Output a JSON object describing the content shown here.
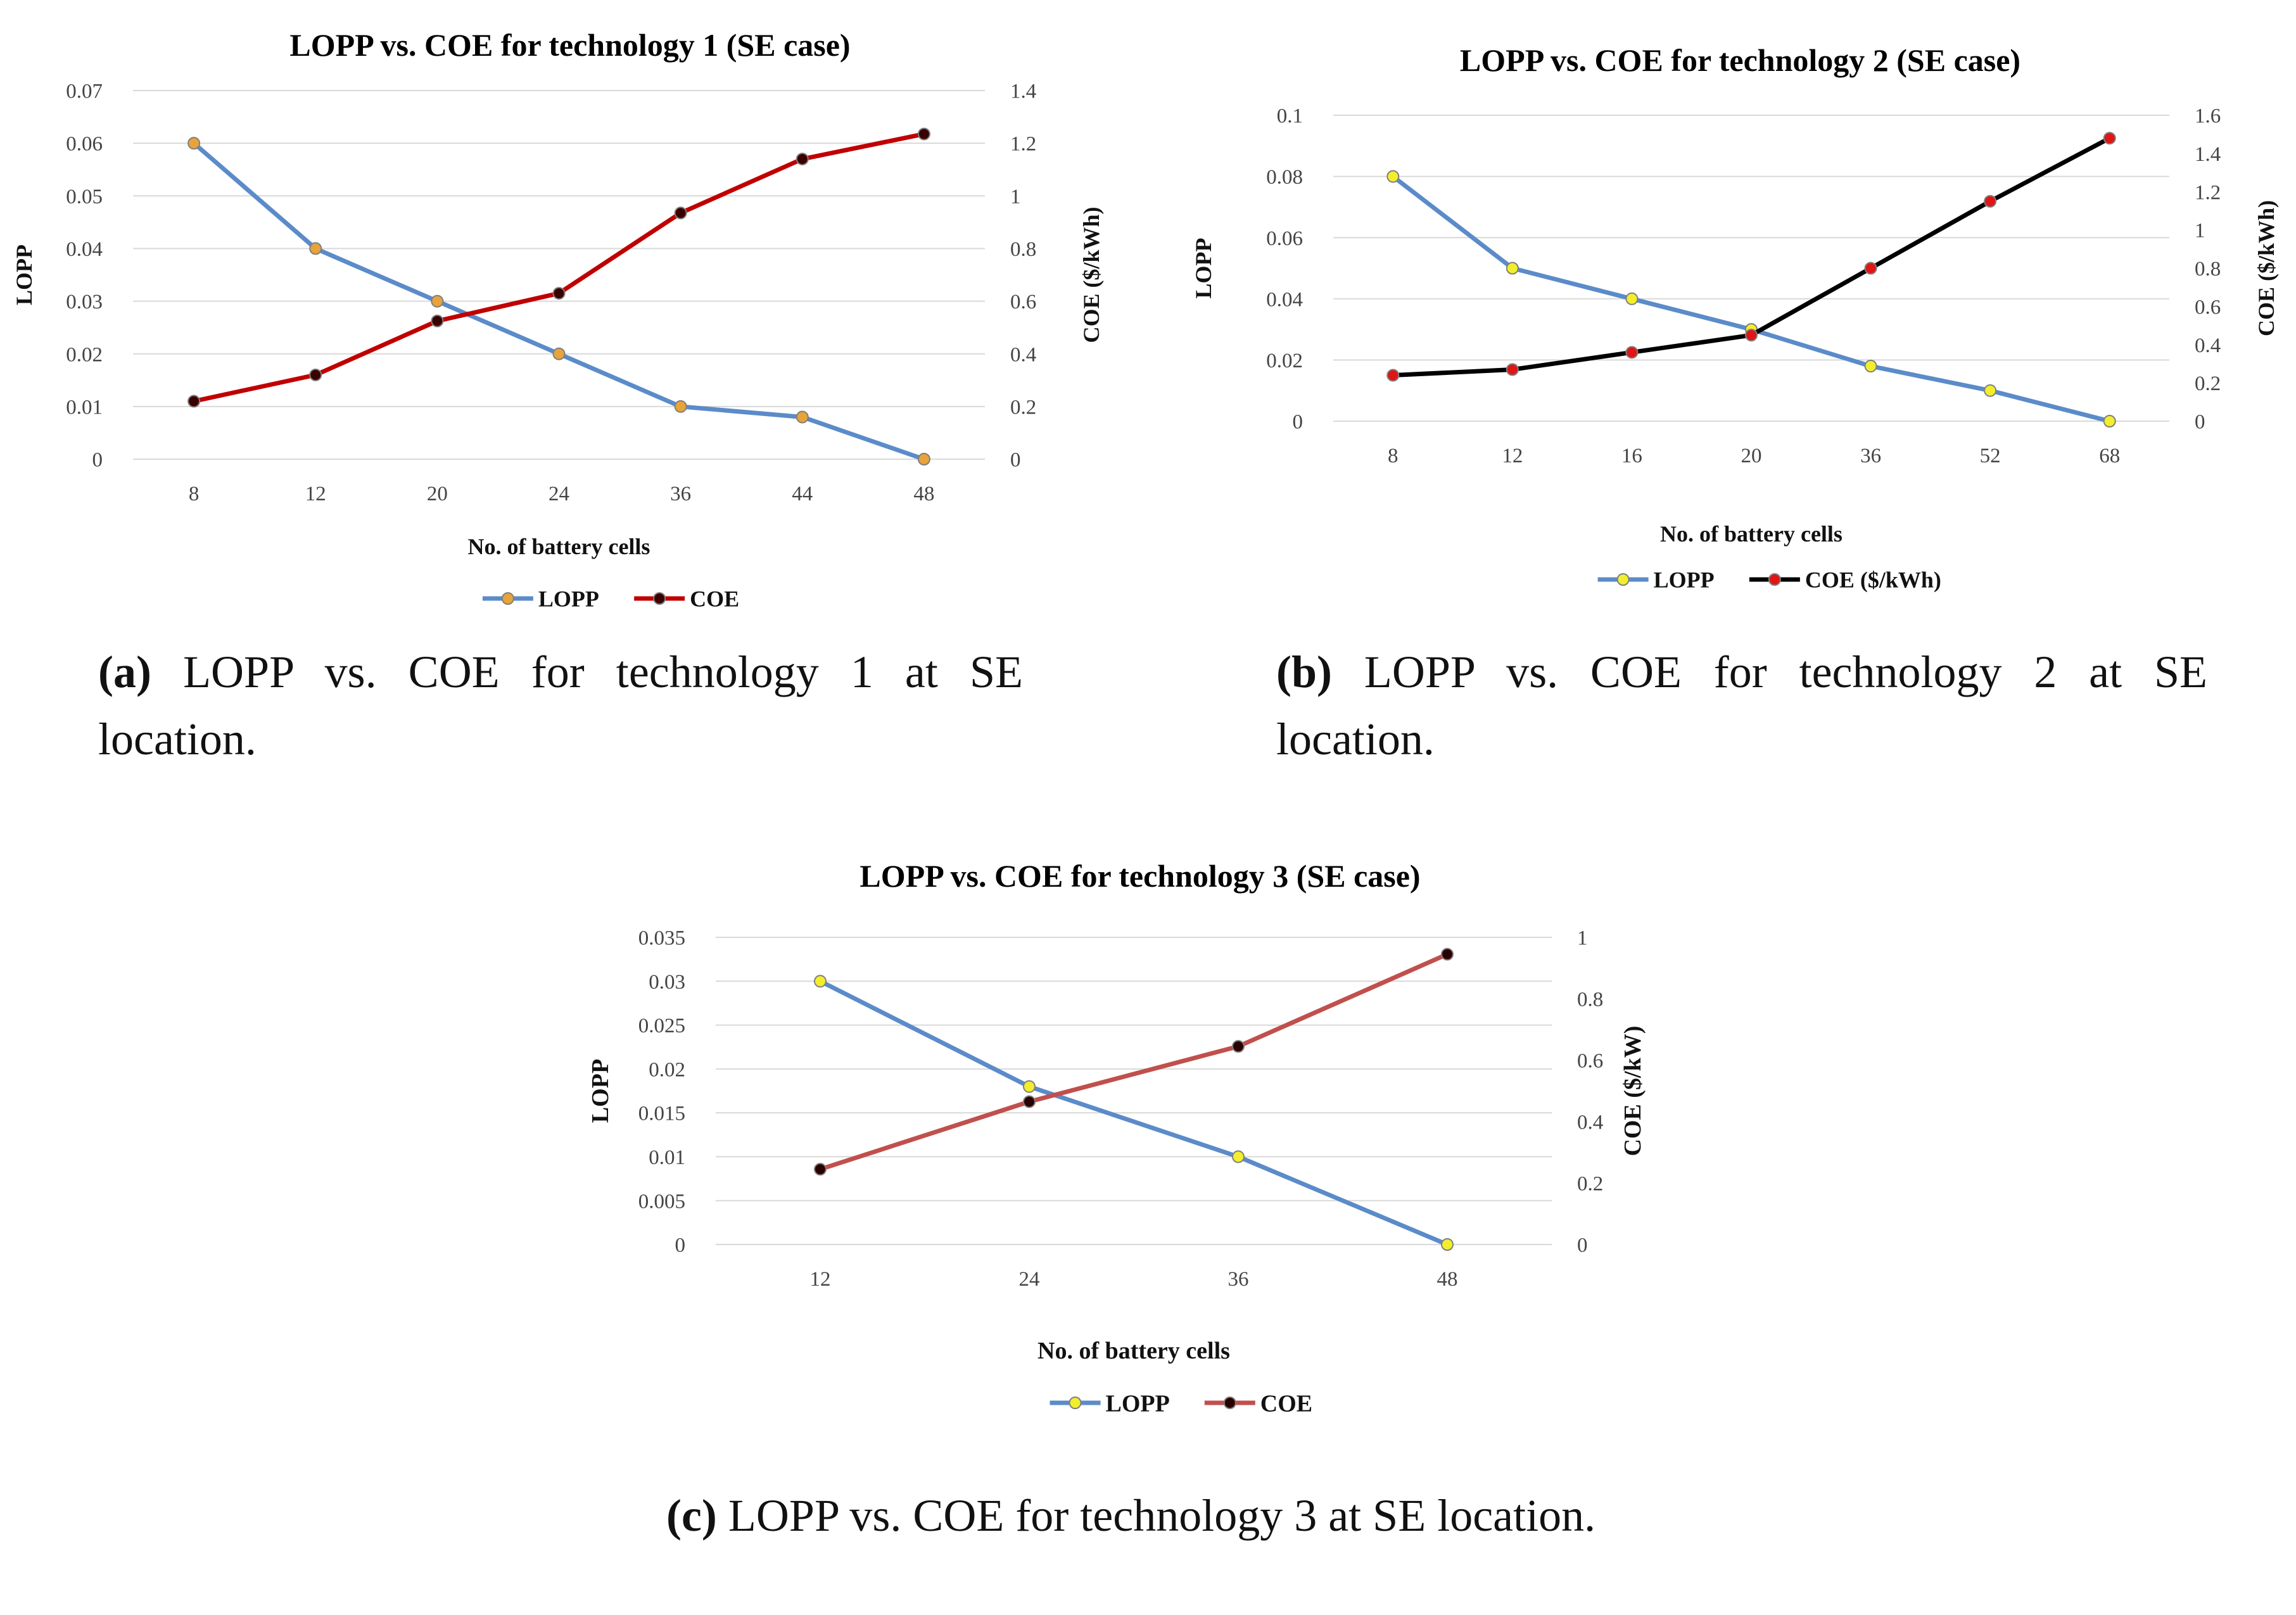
{
  "chart_data": [
    {
      "type": "line",
      "title": "LOPP vs. COE for technology 1 (SE case)",
      "xlabel": "No. of battery cells",
      "ylabel": "LOPP",
      "y2label": "COE ($/kWh)",
      "categories": [
        "8",
        "12",
        "20",
        "24",
        "36",
        "44",
        "48"
      ],
      "ylim": [
        0,
        0.07
      ],
      "y_ticks": [
        "0",
        "0.01",
        "0.02",
        "0.03",
        "0.04",
        "0.05",
        "0.06",
        "0.07"
      ],
      "y2lim": [
        0,
        1.4
      ],
      "y2_ticks": [
        "0",
        "0.2",
        "0.4",
        "0.6",
        "0.8",
        "1",
        "1.2",
        "1.4"
      ],
      "grid": true,
      "legend_position": "bottom",
      "series": [
        {
          "name": "LOPP",
          "axis": "left",
          "color": "#5B8BC9",
          "marker_color": "#E8A33A",
          "values": [
            0.06,
            0.04,
            0.03,
            0.02,
            0.01,
            0.008,
            0.0
          ]
        },
        {
          "name": "COE",
          "axis": "right",
          "color": "#C00000",
          "marker_color": "#3A0000",
          "values": [
            0.22,
            0.32,
            0.525,
            0.63,
            0.935,
            1.14,
            1.235
          ]
        }
      ],
      "caption_label": "(a)",
      "caption_text": "LOPP vs.  COE for technology 1 at SE location."
    },
    {
      "type": "line",
      "title": "LOPP vs. COE for technology 2 (SE case)",
      "xlabel": "No. of battery cells",
      "ylabel": "LOPP",
      "y2label": "COE ($/kWh)",
      "categories": [
        "8",
        "12",
        "16",
        "20",
        "36",
        "52",
        "68"
      ],
      "ylim": [
        0,
        0.1
      ],
      "y_ticks": [
        "0",
        "0.02",
        "0.04",
        "0.06",
        "0.08",
        "0.1"
      ],
      "y2lim": [
        0,
        1.6
      ],
      "y2_ticks": [
        "0",
        "0.2",
        "0.4",
        "0.6",
        "0.8",
        "1",
        "1.2",
        "1.4",
        "1.6"
      ],
      "grid": true,
      "legend_position": "bottom",
      "series": [
        {
          "name": "LOPP",
          "axis": "left",
          "color": "#5B8BC9",
          "marker_color": "#F2EE2E",
          "values": [
            0.08,
            0.05,
            0.04,
            0.03,
            0.018,
            0.01,
            0.0
          ]
        },
        {
          "name": "COE ($/kWh)",
          "axis": "right",
          "color": "#000000",
          "marker_color": "#E01515",
          "values": [
            0.24,
            0.27,
            0.36,
            0.45,
            0.8,
            1.15,
            1.48
          ]
        }
      ],
      "caption_label": "(b)",
      "caption_text": "LOPP vs.  COE for technology 2 at SE location."
    },
    {
      "type": "line",
      "title": "LOPP vs. COE for technology 3 (SE case)",
      "xlabel": "No. of battery cells",
      "ylabel": "LOPP",
      "y2label": "COE ($/kW)",
      "categories": [
        "12",
        "24",
        "36",
        "48"
      ],
      "ylim": [
        0,
        0.035
      ],
      "y_ticks": [
        "0",
        "0.005",
        "0.01",
        "0.015",
        "0.02",
        "0.025",
        "0.03",
        "0.035"
      ],
      "y2lim": [
        0,
        1
      ],
      "y2_ticks": [
        "0",
        "0.2",
        "0.4",
        "0.6",
        "0.8",
        "1"
      ],
      "grid": true,
      "legend_position": "bottom",
      "series": [
        {
          "name": "LOPP",
          "axis": "left",
          "color": "#5B8BC9",
          "marker_color": "#F2EE2E",
          "values": [
            0.03,
            0.018,
            0.01,
            0.0
          ]
        },
        {
          "name": "COE",
          "axis": "right",
          "color": "#C0504D",
          "marker_color": "#2A0000",
          "values": [
            0.245,
            0.465,
            0.645,
            0.945
          ]
        }
      ],
      "caption_label": "(c)",
      "caption_text": "LOPP vs.  COE for technology 3 at SE location."
    }
  ]
}
